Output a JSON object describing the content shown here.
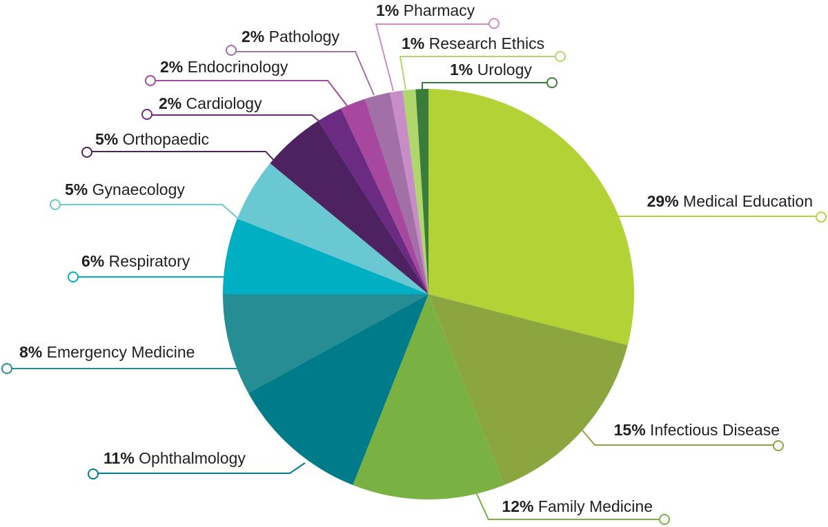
{
  "chart_data": {
    "type": "pie",
    "title": "",
    "slices": [
      {
        "label": "Medical Education",
        "value": 29,
        "percent_label": "29%",
        "color": "#b2d235"
      },
      {
        "label": "Infectious Disease",
        "value": 15,
        "percent_label": "15%",
        "color": "#8ca63f"
      },
      {
        "label": "Family Medicine",
        "value": 12,
        "percent_label": "12%",
        "color": "#79b142"
      },
      {
        "label": "Ophthalmology",
        "value": 11,
        "percent_label": "11%",
        "color": "#007b8a"
      },
      {
        "label": "Emergency Medicine",
        "value": 8,
        "percent_label": "8%",
        "color": "#268d94"
      },
      {
        "label": "Respiratory",
        "value": 6,
        "percent_label": "6%",
        "color": "#00afc1"
      },
      {
        "label": "Gynaecology",
        "value": 5,
        "percent_label": "5%",
        "color": "#6ac8d3"
      },
      {
        "label": "Orthopaedic",
        "value": 5,
        "percent_label": "5%",
        "color": "#4e2161"
      },
      {
        "label": "Cardiology",
        "value": 2,
        "percent_label": "2%",
        "color": "#6b2b83"
      },
      {
        "label": "Endocrinology",
        "value": 2,
        "percent_label": "2%",
        "color": "#a6489d"
      },
      {
        "label": "Pathology",
        "value": 2,
        "percent_label": "2%",
        "color": "#a26fa7"
      },
      {
        "label": "Pharmacy",
        "value": 1,
        "percent_label": "1%",
        "color": "#c88cc7"
      },
      {
        "label": "Research Ethics",
        "value": 1,
        "percent_label": "1%",
        "color": "#b0d66c"
      },
      {
        "label": "Urology",
        "value": 1,
        "percent_label": "1%",
        "color": "#3a7d3b"
      }
    ]
  }
}
